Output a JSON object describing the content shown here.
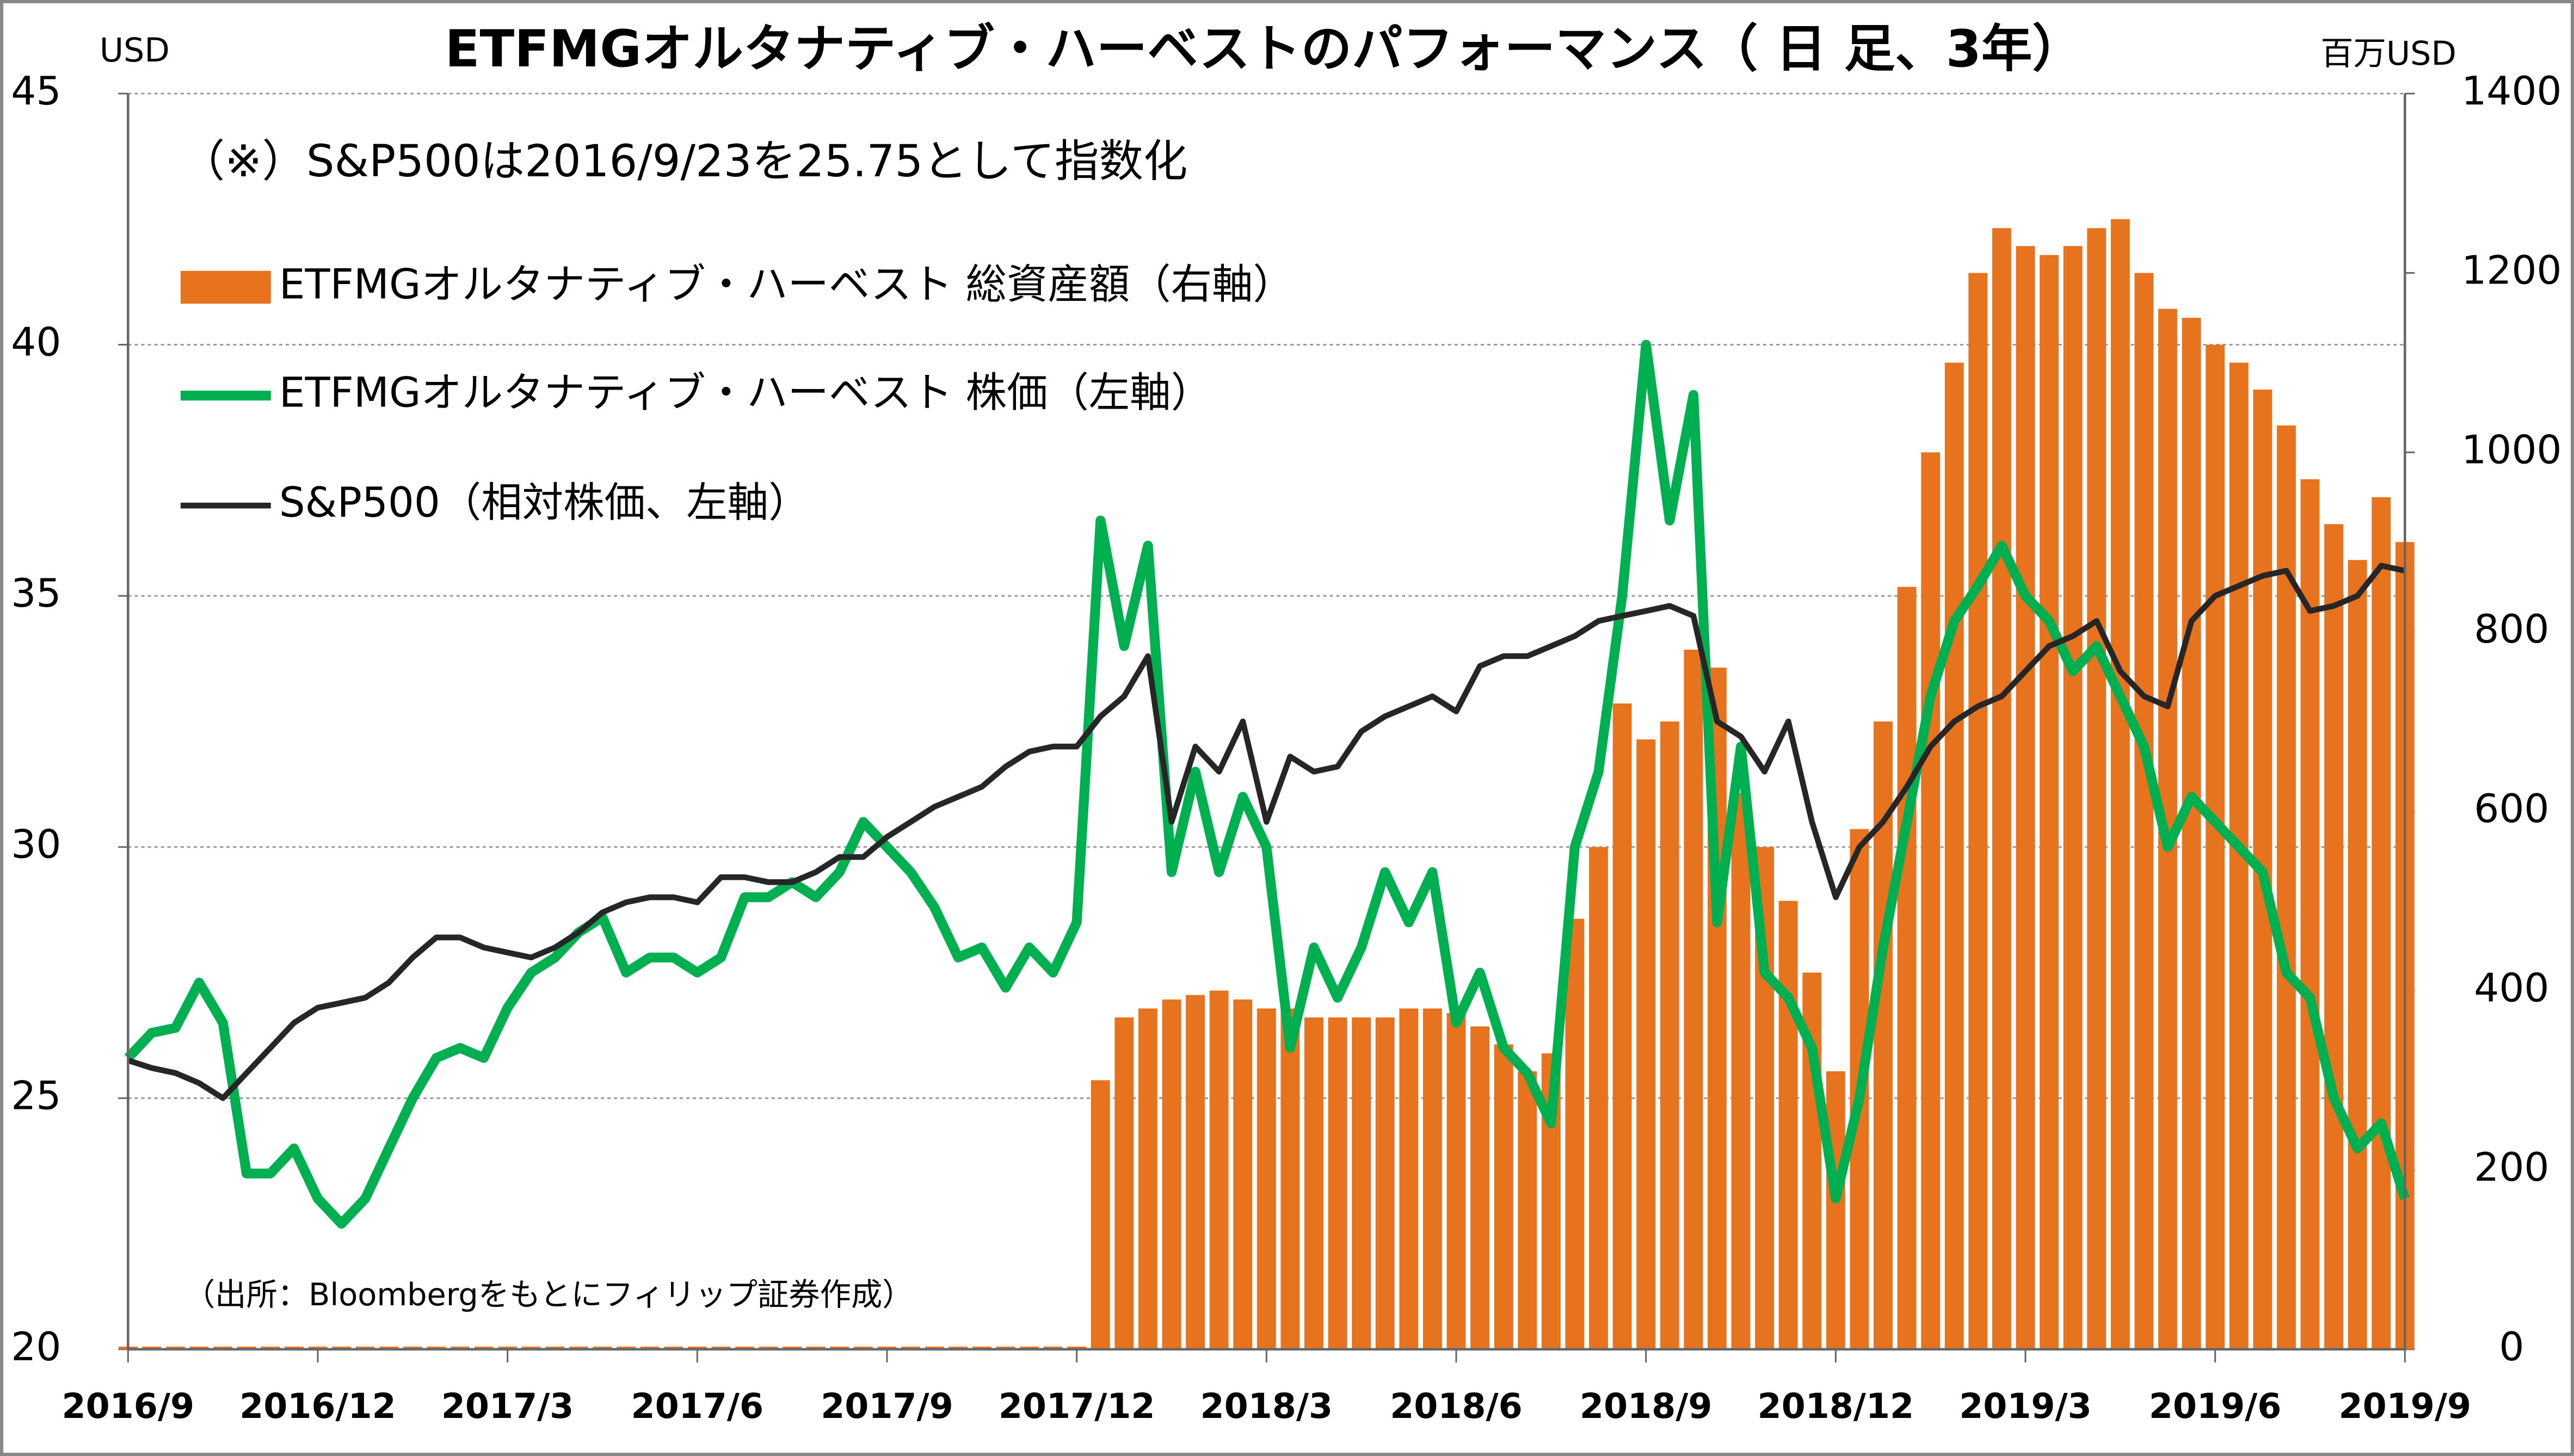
{
  "chart_data": {
    "type": "combo",
    "title": "ETFMGオルタナティブ・ハーベストのパフォーマンス（ 日 足、3年）",
    "subtitle": "（※）S&P500は2016/9/23を25.75として指数化",
    "source": "（出所：Bloombergをもとにフィリップ証券作成）",
    "y_label": "USD",
    "y2_label": "百万USD",
    "categories": [
      "2016/9",
      null,
      null,
      null,
      null,
      null,
      null,
      null,
      "2016/12",
      null,
      null,
      null,
      null,
      null,
      null,
      null,
      "2017/3",
      null,
      null,
      null,
      null,
      null,
      null,
      null,
      "2017/6",
      null,
      null,
      null,
      null,
      null,
      null,
      null,
      "2017/9",
      null,
      null,
      null,
      null,
      null,
      null,
      null,
      "2017/12",
      null,
      null,
      null,
      null,
      null,
      null,
      null,
      "2018/3",
      null,
      null,
      null,
      null,
      null,
      null,
      null,
      "2018/6",
      null,
      null,
      null,
      null,
      null,
      null,
      null,
      "2018/9",
      null,
      null,
      null,
      null,
      null,
      null,
      null,
      "2018/12",
      null,
      null,
      null,
      null,
      null,
      null,
      null,
      "2019/3",
      null,
      null,
      null,
      null,
      null,
      null,
      null,
      "2019/6",
      null,
      null,
      null,
      null,
      null,
      null,
      null,
      "2019/9"
    ],
    "series": [
      {
        "name": "ETFMGオルタナティブ・ハーベスト 総資産額（右軸）",
        "type": "bar",
        "axis": "y2",
        "color": "#e8731e",
        "values": [
          3,
          3,
          3,
          3,
          3,
          3,
          3,
          3,
          3,
          3,
          3,
          3,
          3,
          3,
          3,
          3,
          3,
          3,
          3,
          3,
          3,
          3,
          3,
          3,
          3,
          3,
          3,
          3,
          3,
          3,
          3,
          3,
          3,
          3,
          3,
          3,
          3,
          3,
          3,
          3,
          3,
          300,
          370,
          380,
          390,
          395,
          400,
          390,
          380,
          380,
          370,
          370,
          370,
          370,
          380,
          380,
          375,
          360,
          340,
          310,
          330,
          480,
          560,
          720,
          680,
          700,
          780,
          760,
          620,
          560,
          500,
          420,
          310,
          580,
          700,
          850,
          1000,
          1100,
          1200,
          1250,
          1230,
          1220,
          1230,
          1250,
          1260,
          1200,
          1160,
          1150,
          1120,
          1100,
          1070,
          1030,
          970,
          920,
          880,
          950,
          900
        ]
      },
      {
        "name": "ETFMGオルタナティブ・ハーベスト 株価（左軸）",
        "type": "line",
        "color": "#00b050",
        "values": [
          25.8,
          26.3,
          26.4,
          27.3,
          26.5,
          23.5,
          23.5,
          24.0,
          23.0,
          22.5,
          23.0,
          24.0,
          25.0,
          25.8,
          26.0,
          25.8,
          26.8,
          27.5,
          27.8,
          28.3,
          28.6,
          27.5,
          27.8,
          27.8,
          27.5,
          27.8,
          29.0,
          29.0,
          29.3,
          29.0,
          29.5,
          30.5,
          30.0,
          29.5,
          28.8,
          27.8,
          28.0,
          27.2,
          28.0,
          27.5,
          28.5,
          36.5,
          34.0,
          36.0,
          29.5,
          31.5,
          29.5,
          31.0,
          30.0,
          26.0,
          28.0,
          27.0,
          28.0,
          29.5,
          28.5,
          29.5,
          26.5,
          27.5,
          26.0,
          25.5,
          24.5,
          30.0,
          31.5,
          35.0,
          40.0,
          36.5,
          39.0,
          28.5,
          32.0,
          27.5,
          27.0,
          26.0,
          23.0,
          25.0,
          28.0,
          30.5,
          33.0,
          34.5,
          35.2,
          36.0,
          35.0,
          34.5,
          33.5,
          34.0,
          33.0,
          32.0,
          30.0,
          31.0,
          30.5,
          30.0,
          29.5,
          27.5,
          27.0,
          25.0,
          24.0,
          24.5,
          23.0
        ]
      },
      {
        "name": "S&P500（相対株価、左軸）",
        "type": "line",
        "color": "#262626",
        "values": [
          25.75,
          25.6,
          25.5,
          25.3,
          25.0,
          25.5,
          26.0,
          26.5,
          26.8,
          26.9,
          27.0,
          27.3,
          27.8,
          28.2,
          28.2,
          28.0,
          27.9,
          27.8,
          28.0,
          28.3,
          28.7,
          28.9,
          29.0,
          29.0,
          28.9,
          29.4,
          29.4,
          29.3,
          29.3,
          29.5,
          29.8,
          29.8,
          30.2,
          30.5,
          30.8,
          31.0,
          31.2,
          31.6,
          31.9,
          32.0,
          32.0,
          32.6,
          33.0,
          33.8,
          30.5,
          32.0,
          31.5,
          32.5,
          30.5,
          31.8,
          31.5,
          31.6,
          32.3,
          32.6,
          32.8,
          33.0,
          32.7,
          33.6,
          33.8,
          33.8,
          34.0,
          34.2,
          34.5,
          34.6,
          34.7,
          34.8,
          34.6,
          32.5,
          32.2,
          31.5,
          32.5,
          30.5,
          29.0,
          30.0,
          30.5,
          31.2,
          32.0,
          32.5,
          32.8,
          33.0,
          33.5,
          34.0,
          34.2,
          34.5,
          33.5,
          33.0,
          32.8,
          34.5,
          35.0,
          35.2,
          35.4,
          35.5,
          34.7,
          34.8,
          35.0,
          35.6,
          35.5
        ]
      }
    ],
    "ylim": [
      20,
      45
    ],
    "yticks": [
      20,
      25,
      30,
      35,
      40,
      45
    ],
    "y2lim": [
      0,
      1400
    ],
    "y2ticks": [
      0,
      200,
      400,
      600,
      800,
      1000,
      1200,
      1400
    ],
    "grid": true
  }
}
